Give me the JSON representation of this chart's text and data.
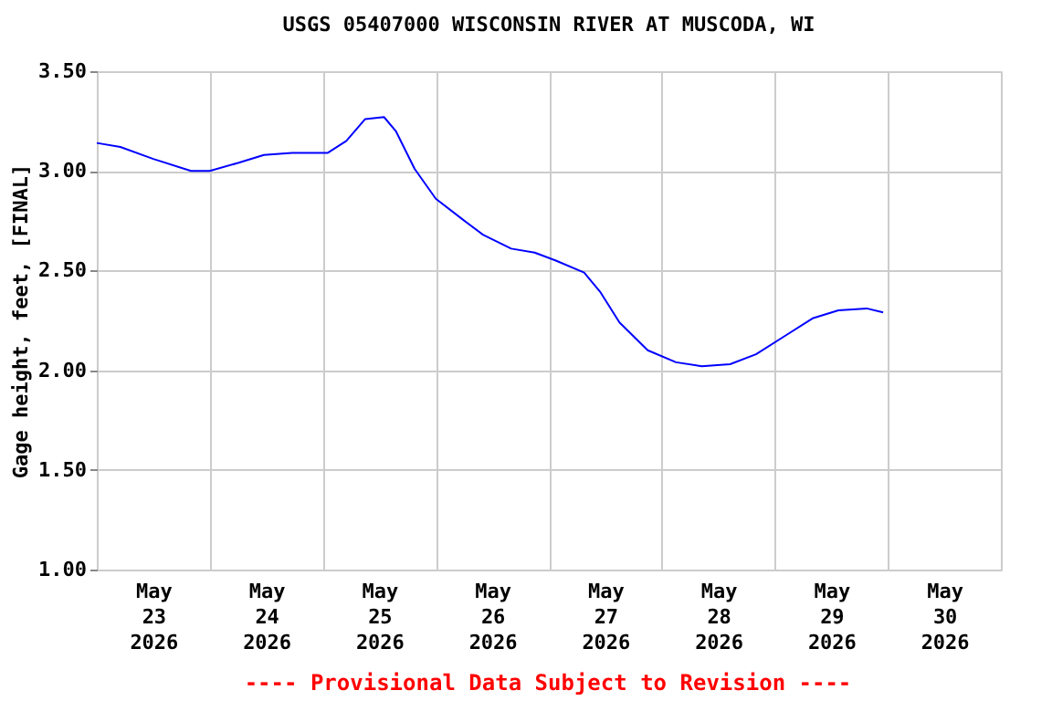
{
  "chart_data": {
    "type": "line",
    "title": "USGS 05407000 WISCONSIN RIVER AT MUSCODA, WI",
    "ylabel": "Gage height, feet, [FINAL]",
    "annotations": [
      "---- Provisional Data Subject to Revision ----"
    ],
    "x": [
      "2026-05-23T00:00",
      "2026-05-23T05:00",
      "2026-05-23T12:00",
      "2026-05-23T20:00",
      "2026-05-24T00:00",
      "2026-05-24T06:00",
      "2026-05-24T11:30",
      "2026-05-24T17:30",
      "2026-05-25T01:00",
      "2026-05-25T05:00",
      "2026-05-25T09:00",
      "2026-05-25T13:00",
      "2026-05-25T15:30",
      "2026-05-25T19:30",
      "2026-05-26T00:00",
      "2026-05-26T05:30",
      "2026-05-26T10:00",
      "2026-05-26T16:00",
      "2026-05-26T21:00",
      "2026-05-27T01:30",
      "2026-05-27T07:30",
      "2026-05-27T11:00",
      "2026-05-27T15:00",
      "2026-05-27T21:00",
      "2026-05-28T03:00",
      "2026-05-28T08:30",
      "2026-05-28T14:30",
      "2026-05-28T20:00",
      "2026-05-29T02:00",
      "2026-05-29T08:00",
      "2026-05-29T13:30",
      "2026-05-29T19:30",
      "2026-05-29T23:00"
    ],
    "series": [
      {
        "color": "#0000ff",
        "values": [
          3.14,
          3.12,
          3.06,
          3.0,
          3.0,
          3.04,
          3.08,
          3.09,
          3.09,
          3.15,
          3.26,
          3.27,
          3.2,
          3.01,
          2.86,
          2.76,
          2.68,
          2.61,
          2.59,
          2.55,
          2.49,
          2.39,
          2.24,
          2.1,
          2.04,
          2.02,
          2.03,
          2.08,
          2.17,
          2.26,
          2.3,
          2.31,
          2.29
        ]
      }
    ],
    "xlim": [
      "2026-05-23T00:00",
      "2026-05-31T00:00"
    ],
    "xticks": [
      {
        "value": "2026-05-23T00:00",
        "label": null
      },
      {
        "value": "2026-05-23T12:00",
        "label": "May 23 2026"
      },
      {
        "value": "2026-05-24T00:00",
        "label": null
      },
      {
        "value": "2026-05-24T12:00",
        "label": "May 24 2026"
      },
      {
        "value": "2026-05-25T00:00",
        "label": null
      },
      {
        "value": "2026-05-25T12:00",
        "label": "May 25 2026"
      },
      {
        "value": "2026-05-26T00:00",
        "label": null
      },
      {
        "value": "2026-05-26T12:00",
        "label": "May 26 2026"
      },
      {
        "value": "2026-05-27T00:00",
        "label": null
      },
      {
        "value": "2026-05-27T12:00",
        "label": "May 27 2026"
      },
      {
        "value": "2026-05-28T00:00",
        "label": null
      },
      {
        "value": "2026-05-28T12:00",
        "label": "May 28 2026"
      },
      {
        "value": "2026-05-29T00:00",
        "label": null
      },
      {
        "value": "2026-05-29T12:00",
        "label": "May 29 2026"
      },
      {
        "value": "2026-05-30T00:00",
        "label": null
      },
      {
        "value": "2026-05-30T12:00",
        "label": "May 30 2026"
      },
      {
        "value": "2026-05-31T00:00",
        "label": null
      }
    ],
    "ylim": [
      1.0,
      3.5
    ],
    "yticks": [
      {
        "value": 1.0,
        "label": "1.00"
      },
      {
        "value": 1.5,
        "label": "1.50"
      },
      {
        "value": 2.0,
        "label": "2.00"
      },
      {
        "value": 2.5,
        "label": "2.50"
      },
      {
        "value": 3.0,
        "label": "3.00"
      },
      {
        "value": 3.5,
        "label": "3.50"
      }
    ],
    "grid": true,
    "legend": false,
    "marker": "none",
    "line_style": "solid"
  }
}
